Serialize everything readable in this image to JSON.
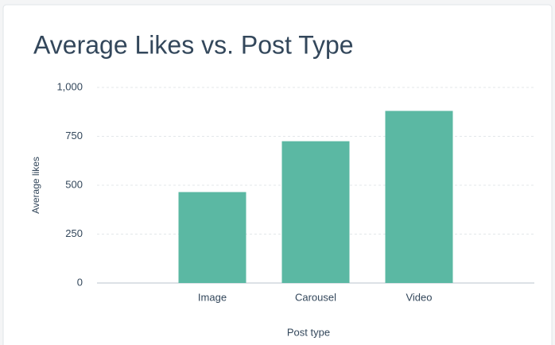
{
  "chart_data": {
    "type": "bar",
    "title": "Average Likes vs. Post Type",
    "x_label": "Post type",
    "y_label": "Average likes",
    "categories": [
      "Image",
      "Carousel",
      "Video"
    ],
    "values": [
      465,
      725,
      880
    ],
    "color": "#5bb8a3",
    "ylim": [
      0,
      1000
    ],
    "yticks": [
      0,
      250,
      500,
      750,
      {
        "value": 1000,
        "label": "1,000"
      }
    ],
    "grid": true
  }
}
